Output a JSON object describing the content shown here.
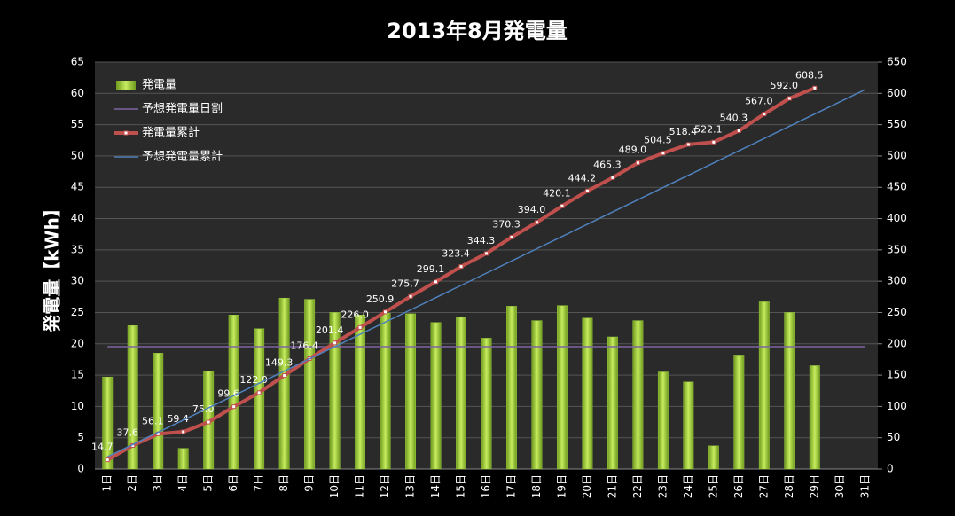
{
  "chart_data": {
    "type": "bar",
    "title": "2013年8月発電量",
    "y_label": "発電量【kWh】",
    "categories": [
      "1日",
      "2日",
      "3日",
      "4日",
      "5日",
      "6日",
      "7日",
      "8日",
      "9日",
      "10日",
      "11日",
      "12日",
      "13日",
      "14日",
      "15日",
      "16日",
      "17日",
      "18日",
      "19日",
      "20日",
      "21日",
      "22日",
      "23日",
      "24日",
      "25日",
      "26日",
      "27日",
      "28日",
      "29日",
      "30日",
      "31日"
    ],
    "ylim": [
      0,
      65
    ],
    "yticks": [
      0,
      5,
      10,
      15,
      20,
      25,
      30,
      35,
      40,
      45,
      50,
      55,
      60,
      65
    ],
    "y2lim": [
      0,
      650
    ],
    "y2ticks": [
      0,
      50,
      100,
      150,
      200,
      250,
      300,
      350,
      400,
      450,
      500,
      550,
      600,
      650
    ],
    "grid": true,
    "series": [
      {
        "name": "発電量",
        "type": "bar",
        "color": "#9bcb3c",
        "values": [
          14.7,
          22.9,
          18.5,
          3.3,
          15.6,
          24.6,
          22.4,
          27.3,
          27.1,
          25.0,
          24.6,
          24.9,
          24.8,
          23.4,
          24.3,
          20.9,
          26.0,
          23.7,
          26.1,
          24.1,
          21.1,
          23.7,
          15.5,
          13.9,
          3.7,
          18.2,
          26.7,
          25.0,
          16.5,
          null,
          null
        ]
      },
      {
        "name": "予想発電量日割",
        "type": "line",
        "color": "#8064a2",
        "values": [
          19.55,
          19.55,
          19.55,
          19.55,
          19.55,
          19.55,
          19.55,
          19.55,
          19.55,
          19.55,
          19.55,
          19.55,
          19.55,
          19.55,
          19.55,
          19.55,
          19.55,
          19.55,
          19.55,
          19.55,
          19.55,
          19.55,
          19.55,
          19.55,
          19.55,
          19.55,
          19.55,
          19.55,
          19.55,
          19.55,
          19.55
        ]
      },
      {
        "name": "発電量累計",
        "type": "line",
        "axis": "y2",
        "color": "#c0504d",
        "markers": true,
        "values": [
          14.7,
          37.6,
          56.1,
          59.4,
          75.0,
          99.6,
          122.0,
          149.3,
          176.4,
          201.4,
          226.0,
          250.9,
          275.7,
          299.1,
          323.4,
          344.3,
          370.3,
          394.0,
          420.1,
          444.2,
          465.3,
          489.0,
          504.5,
          518.4,
          522.1,
          540.3,
          567.0,
          592.0,
          608.5,
          null,
          null
        ],
        "value_labels": [
          "14.7",
          "37.6",
          "56.1",
          "59.4",
          "75.0",
          "99.6",
          "122.0",
          "149.3",
          "176.4",
          "201.4",
          "226.0",
          "250.9",
          "275.7",
          "299.1",
          "323.4",
          "344.3",
          "370.3",
          "394.0",
          "420.1",
          "444.2",
          "465.3",
          "489.0",
          "504.5",
          "518.4",
          "522.1",
          "540.3",
          "567.0",
          "592.0",
          "608.5",
          null,
          null
        ]
      },
      {
        "name": "予想発電量累計",
        "type": "line",
        "axis": "y2",
        "color": "#4f81bd",
        "values": [
          19.6,
          39.1,
          58.7,
          78.2,
          97.8,
          117.3,
          136.9,
          156.4,
          176.0,
          195.5,
          215.1,
          234.6,
          254.2,
          273.7,
          293.3,
          312.8,
          332.4,
          351.9,
          371.5,
          391.0,
          410.6,
          430.1,
          449.7,
          469.2,
          488.8,
          508.3,
          527.9,
          547.4,
          567.0,
          586.5,
          606.1
        ]
      }
    ]
  }
}
